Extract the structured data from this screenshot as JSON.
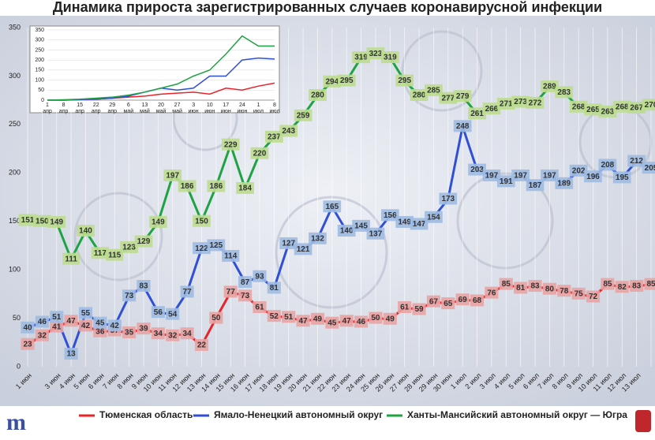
{
  "chart_data": [
    {
      "type": "line",
      "title": "Динамика прироста зарегистрированных случаев коронавирусной инфекции",
      "categories": [
        "1 июн",
        null,
        "3 июн",
        "4 июн",
        "5 июн",
        "6 июн",
        "7 июн",
        "8 июн",
        "9 июн",
        "10 июн",
        "11 июн",
        "12 июн",
        "13 июн",
        "14 июн",
        "15 июн",
        "16 июн",
        "17 июн",
        "18 июн",
        "19 июн",
        "20 июн",
        "21 июн",
        "22 июн",
        "23 июн",
        "24 июн",
        "25 июн",
        "26 июн",
        "27 июн",
        "28 июн",
        "29 июн",
        "30 июн",
        "1 июл",
        "2 июл",
        "3 июл",
        "4 июл",
        "5 июл",
        "6 июл",
        "7 июл",
        "8 июл",
        "9 июл",
        "10 июл",
        "11 июл",
        "12 июл",
        "13 июл",
        null
      ],
      "series": [
        {
          "name": "Тюменская область",
          "color": "#e8232a",
          "label_color": "#e9a3a3",
          "values": [
            23,
            32,
            41,
            47,
            42,
            36,
            37,
            35,
            39,
            34,
            32,
            34,
            22,
            50,
            77,
            73,
            61,
            52,
            51,
            47,
            49,
            45,
            47,
            46,
            50,
            49,
            61,
            59,
            67,
            65,
            69,
            68,
            76,
            85,
            81,
            83,
            80,
            78,
            75,
            72,
            85,
            82,
            83,
            85
          ]
        },
        {
          "name": "Ямало-Ненецкий автономный округ",
          "color": "#2f4fd6",
          "label_color": "#9fbbe2",
          "values": [
            40,
            46,
            51,
            13,
            55,
            45,
            42,
            73,
            83,
            56,
            54,
            77,
            122,
            125,
            114,
            87,
            93,
            81,
            127,
            121,
            132,
            165,
            140,
            145,
            137,
            156,
            149,
            147,
            154,
            173,
            248,
            203,
            197,
            191,
            197,
            187,
            197,
            189,
            202,
            196,
            208,
            195,
            212,
            205
          ]
        },
        {
          "name": "Ханты-Мансийский автономный округ — Югра",
          "color": "#1ea342",
          "label_color": "#bcdc8f",
          "values": [
            151,
            150,
            149,
            111,
            140,
            117,
            115,
            123,
            129,
            149,
            197,
            186,
            150,
            186,
            229,
            184,
            220,
            237,
            243,
            259,
            280,
            294,
            295,
            319,
            323,
            319,
            295,
            280,
            285,
            277,
            279,
            261,
            266,
            271,
            273,
            272,
            289,
            283,
            268,
            265,
            263,
            268,
            267,
            270
          ]
        }
      ],
      "ylim": [
        0,
        350
      ],
      "yticks": [
        0,
        50,
        100,
        150,
        200,
        250,
        300,
        350
      ],
      "grid": true,
      "legend": "bottom"
    },
    {
      "type": "line",
      "categories": [
        "1 апр",
        "8 апр",
        "15 апр",
        "22 апр",
        "29 апр",
        "6 май",
        "13 май",
        "20 май",
        "27 май",
        "3 июн",
        "10 июн",
        "17 июн",
        "24 июн",
        "1 июл",
        "8 июл"
      ],
      "series": [
        {
          "color": "#e8232a",
          "values": [
            0,
            0,
            2,
            5,
            10,
            15,
            20,
            30,
            35,
            40,
            30,
            60,
            50,
            70,
            85
          ]
        },
        {
          "color": "#2f4fd6",
          "values": [
            0,
            0,
            3,
            5,
            10,
            20,
            40,
            60,
            50,
            60,
            120,
            120,
            200,
            210,
            205
          ]
        },
        {
          "color": "#1ea342",
          "values": [
            0,
            2,
            5,
            10,
            15,
            25,
            40,
            60,
            80,
            120,
            150,
            230,
            320,
            270,
            270
          ]
        }
      ],
      "ylim": [
        0,
        350
      ],
      "yticks": [
        0,
        50,
        100,
        150,
        200,
        250,
        300,
        350
      ],
      "grid": true
    }
  ]
}
